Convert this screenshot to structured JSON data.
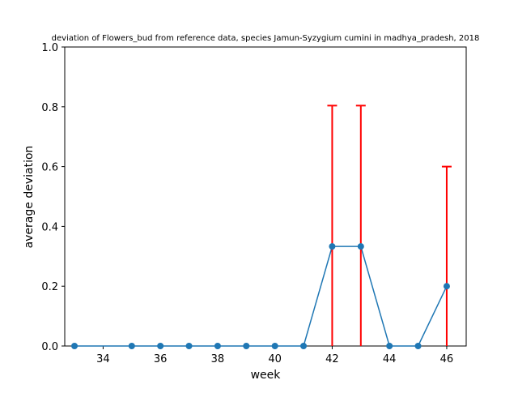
{
  "chart_data": {
    "type": "line",
    "title": "deviation of Flowers_bud from reference data, species Jamun-Syzygium cumini in madhya_pradesh, 2018",
    "xlabel": "week",
    "ylabel": "average deviation",
    "xlim": [
      32.66,
      46.68
    ],
    "ylim": [
      0,
      1.0
    ],
    "x_ticks": [
      34,
      36,
      38,
      40,
      42,
      44,
      46
    ],
    "y_ticks": [
      0.0,
      0.2,
      0.4,
      0.6,
      0.8,
      1.0
    ],
    "x_tick_labels": [
      "34",
      "36",
      "38",
      "40",
      "42",
      "44",
      "46"
    ],
    "y_tick_labels": [
      "0.0",
      "0.2",
      "0.4",
      "0.6",
      "0.8",
      "1.0"
    ],
    "grid": false,
    "legend": "none",
    "series": [
      {
        "color": "#1f77b4",
        "marker": "circle",
        "x": [
          33,
          35,
          36,
          37,
          38,
          39,
          40,
          41,
          42,
          43,
          44,
          45,
          46
        ],
        "y": [
          0,
          0,
          0,
          0,
          0,
          0,
          0,
          0,
          0.333,
          0.333,
          0,
          0,
          0.2
        ],
        "error": [
          0,
          0,
          0,
          0,
          0,
          0,
          0,
          0,
          0.471,
          0.471,
          0,
          0,
          0.4
        ]
      }
    ],
    "errorbar_color": "#ff0000"
  }
}
